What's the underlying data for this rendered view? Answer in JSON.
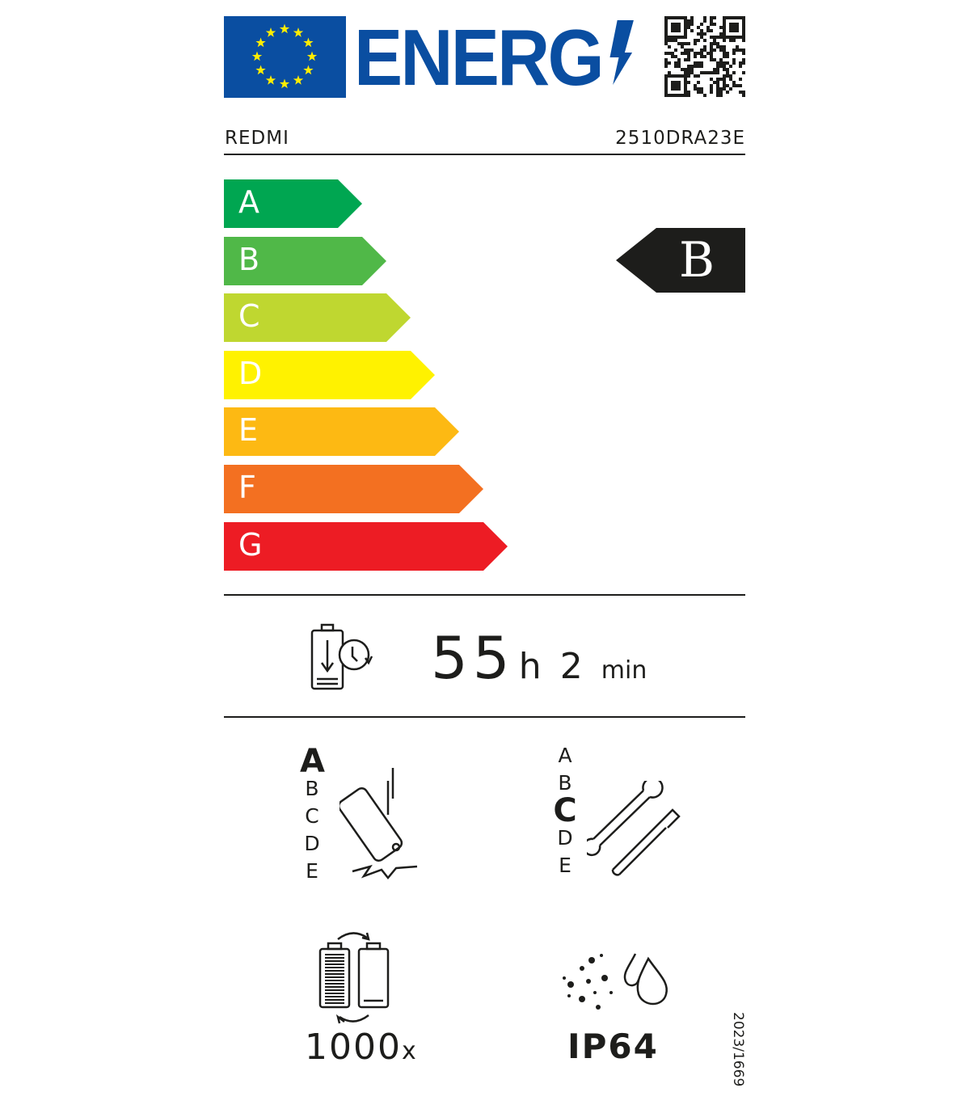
{
  "header": {
    "logo_text": "ENERG",
    "brand": "REDMI",
    "model": "2510DRA23E"
  },
  "scale": {
    "classes": [
      {
        "letter": "A",
        "color": "#00a651"
      },
      {
        "letter": "B",
        "color": "#50b848"
      },
      {
        "letter": "C",
        "color": "#bfd730"
      },
      {
        "letter": "D",
        "color": "#fff200"
      },
      {
        "letter": "E",
        "color": "#fdb913"
      },
      {
        "letter": "F",
        "color": "#f37021"
      },
      {
        "letter": "G",
        "color": "#ed1c24"
      }
    ],
    "rating": "B"
  },
  "battery": {
    "hours": "55",
    "h_unit": "h",
    "minutes": "2",
    "min_unit": "min"
  },
  "drop": {
    "grades": [
      "A",
      "B",
      "C",
      "D",
      "E"
    ],
    "selected": "A"
  },
  "repair": {
    "grades": [
      "A",
      "B",
      "C",
      "D",
      "E"
    ],
    "selected": "C"
  },
  "cycles": {
    "value": "1000",
    "unit": "x"
  },
  "ingress": {
    "value": "IP64"
  },
  "regulation": "2023/1669"
}
